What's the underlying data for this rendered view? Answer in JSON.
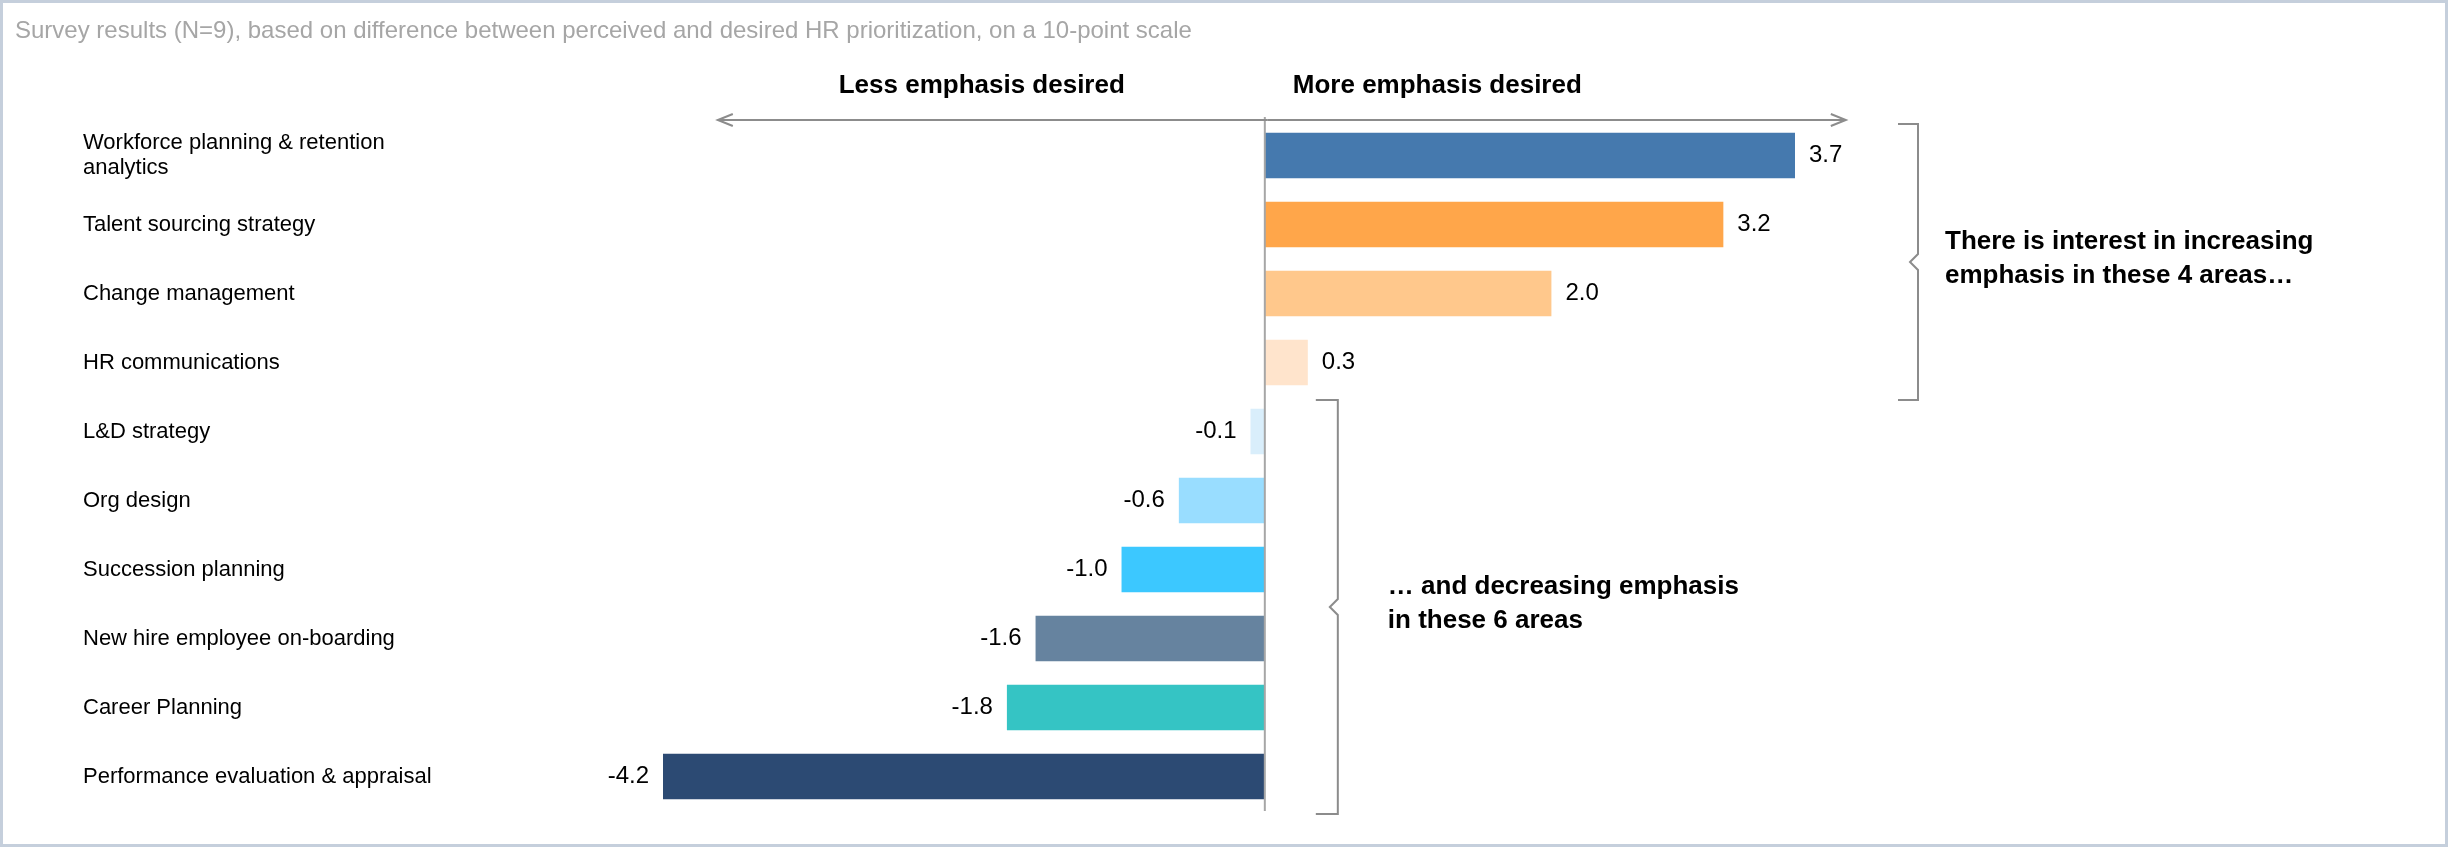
{
  "chart_data": {
    "type": "bar",
    "orientation": "horizontal",
    "title": "Survey results (N=9), based on difference between perceived and desired HR prioritization, on a 10-point scale",
    "categories": [
      "Workforce planning & retention analytics",
      "Talent sourcing strategy",
      "Change management",
      "HR communications",
      "L&D strategy",
      "Org design",
      "Succession planning",
      "New hire employee on-boarding",
      "Career Planning",
      "Performance evaluation & appraisal"
    ],
    "values": [
      3.7,
      3.2,
      2.0,
      0.3,
      -0.1,
      -0.6,
      -1.0,
      -1.6,
      -1.8,
      -4.2
    ],
    "colors": [
      "#4579ae",
      "#ffa64a",
      "#ffc88c",
      "#ffe4cc",
      "#d9eefb",
      "#99ddff",
      "#3cc8ff",
      "#66839f",
      "#35c4c4",
      "#2c4a73"
    ],
    "value_labels": [
      "3.7",
      "3.2",
      "2.0",
      "0.3",
      "-0.1",
      "-0.6",
      "-1.0",
      "-1.6",
      "-1.8",
      "-4.2"
    ],
    "tick_labels": "y",
    "grid": false,
    "legend": false,
    "ref_lines": [
      {
        "axis": "x",
        "value": 0,
        "color": "#a6a6a6"
      }
    ],
    "annotations": [
      "Less emphasis desired",
      "More emphasis desired",
      "There is interest in increasing emphasis in these 4 areas…",
      "… and decreasing emphasis in these 6 areas"
    ]
  }
}
